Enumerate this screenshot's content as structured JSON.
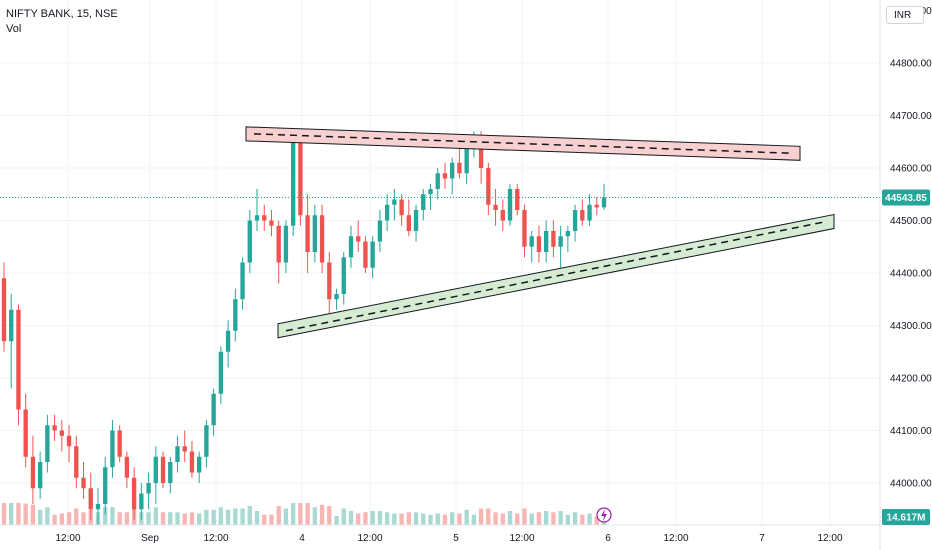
{
  "header": {
    "symbol_title": "NIFTY BANK, 15, NSE",
    "volume_label": "Vol",
    "currency": "INR"
  },
  "chart_data": {
    "type": "candlestick",
    "title": "NIFTY BANK, 15, NSE",
    "ylim": [
      43920,
      44920
    ],
    "y_ticks": [
      "44800.00",
      "44700.00",
      "44600.00",
      "44500.00",
      "44400.00",
      "44300.00",
      "44200.00",
      "44100.00",
      "44000.00"
    ],
    "y_tick_values": [
      44800,
      44700,
      44600,
      44500,
      44400,
      44300,
      44200,
      44100,
      44000
    ],
    "x_ticks": [
      "12:00",
      "Sep",
      "12:00",
      "4",
      "12:00",
      "5",
      "12:00",
      "6",
      "12:00",
      "7",
      "12:00"
    ],
    "last_price": "44543.85",
    "last_volume": "14.617M",
    "grid": true,
    "colors": {
      "up": "#26a69a",
      "down": "#ef5350",
      "price_line": "#26a69a"
    },
    "candles": [
      [
        44390,
        44420,
        44250,
        44270
      ],
      [
        44270,
        44360,
        44180,
        44330
      ],
      [
        44330,
        44340,
        44110,
        44140
      ],
      [
        44140,
        44170,
        44030,
        44050
      ],
      [
        44050,
        44090,
        43960,
        43990
      ],
      [
        43990,
        44060,
        43970,
        44040
      ],
      [
        44040,
        44130,
        44020,
        44110
      ],
      [
        44110,
        44130,
        44080,
        44100
      ],
      [
        44100,
        44120,
        44060,
        44090
      ],
      [
        44090,
        44110,
        44040,
        44070
      ],
      [
        44070,
        44090,
        43990,
        44010
      ],
      [
        44010,
        44040,
        43970,
        43990
      ],
      [
        43990,
        44020,
        43930,
        43950
      ],
      [
        43950,
        43990,
        43920,
        43960
      ],
      [
        43960,
        44050,
        43940,
        44030
      ],
      [
        44030,
        44120,
        44010,
        44100
      ],
      [
        44100,
        44110,
        44040,
        44050
      ],
      [
        44050,
        44060,
        43990,
        44010
      ],
      [
        44010,
        44030,
        43930,
        43950
      ],
      [
        43950,
        44000,
        43930,
        43980
      ],
      [
        43980,
        44020,
        43950,
        44000
      ],
      [
        44000,
        44070,
        43960,
        44050
      ],
      [
        44050,
        44060,
        43990,
        44000
      ],
      [
        44000,
        44050,
        43980,
        44040
      ],
      [
        44040,
        44090,
        44020,
        44070
      ],
      [
        44070,
        44100,
        44040,
        44060
      ],
      [
        44060,
        44080,
        44010,
        44020
      ],
      [
        44020,
        44060,
        44000,
        44050
      ],
      [
        44050,
        44120,
        44030,
        44110
      ],
      [
        44110,
        44180,
        44090,
        44170
      ],
      [
        44170,
        44260,
        44150,
        44250
      ],
      [
        44250,
        44310,
        44220,
        44290
      ],
      [
        44290,
        44370,
        44270,
        44350
      ],
      [
        44350,
        44430,
        44330,
        44420
      ],
      [
        44420,
        44520,
        44400,
        44500
      ],
      [
        44500,
        44560,
        44480,
        44510
      ],
      [
        44510,
        44530,
        44480,
        44500
      ],
      [
        44500,
        44520,
        44470,
        44490
      ],
      [
        44490,
        44500,
        44380,
        44420
      ],
      [
        44420,
        44500,
        44400,
        44490
      ],
      [
        44490,
        44660,
        44470,
        44650
      ],
      [
        44650,
        44660,
        44490,
        44510
      ],
      [
        44510,
        44550,
        44400,
        44440
      ],
      [
        44440,
        44530,
        44420,
        44510
      ],
      [
        44510,
        44530,
        44400,
        44420
      ],
      [
        44420,
        44440,
        44320,
        44350
      ],
      [
        44350,
        44370,
        44330,
        44360
      ],
      [
        44360,
        44440,
        44340,
        44430
      ],
      [
        44430,
        44490,
        44410,
        44470
      ],
      [
        44470,
        44500,
        44440,
        44460
      ],
      [
        44460,
        44470,
        44400,
        44410
      ],
      [
        44410,
        44470,
        44390,
        44460
      ],
      [
        44460,
        44520,
        44440,
        44500
      ],
      [
        44500,
        44550,
        44480,
        44530
      ],
      [
        44530,
        44560,
        44500,
        44540
      ],
      [
        44540,
        44550,
        44490,
        44510
      ],
      [
        44510,
        44540,
        44470,
        44480
      ],
      [
        44480,
        44530,
        44460,
        44520
      ],
      [
        44520,
        44560,
        44500,
        44550
      ],
      [
        44550,
        44570,
        44520,
        44560
      ],
      [
        44560,
        44600,
        44540,
        44590
      ],
      [
        44590,
        44610,
        44560,
        44580
      ],
      [
        44580,
        44620,
        44550,
        44610
      ],
      [
        44610,
        44640,
        44580,
        44590
      ],
      [
        44590,
        44660,
        44570,
        44650
      ],
      [
        44650,
        44670,
        44620,
        44660
      ],
      [
        44660,
        44670,
        44570,
        44600
      ],
      [
        44600,
        44610,
        44510,
        44530
      ],
      [
        44530,
        44560,
        44490,
        44520
      ],
      [
        44520,
        44540,
        44480,
        44500
      ],
      [
        44500,
        44570,
        44490,
        44560
      ],
      [
        44560,
        44570,
        44510,
        44520
      ],
      [
        44520,
        44530,
        44430,
        44450
      ],
      [
        44450,
        44480,
        44420,
        44470
      ],
      [
        44470,
        44490,
        44420,
        44440
      ],
      [
        44440,
        44500,
        44420,
        44480
      ],
      [
        44480,
        44500,
        44430,
        44450
      ],
      [
        44450,
        44490,
        44410,
        44470
      ],
      [
        44470,
        44490,
        44440,
        44480
      ],
      [
        44480,
        44530,
        44460,
        44520
      ],
      [
        44520,
        44540,
        44490,
        44500
      ],
      [
        44500,
        44550,
        44490,
        44530
      ],
      [
        44530,
        44545,
        44510,
        44525
      ],
      [
        44525,
        44570,
        44520,
        44544
      ]
    ],
    "trendlines": [
      {
        "name": "resistance",
        "points": [
          [
            44665,
            0
          ],
          [
            44628,
            1
          ]
        ],
        "fill": "#f8d0d0"
      },
      {
        "name": "support",
        "points": [
          [
            44290,
            0
          ],
          [
            44498,
            1
          ]
        ],
        "fill": "#d5ecd2"
      }
    ]
  }
}
